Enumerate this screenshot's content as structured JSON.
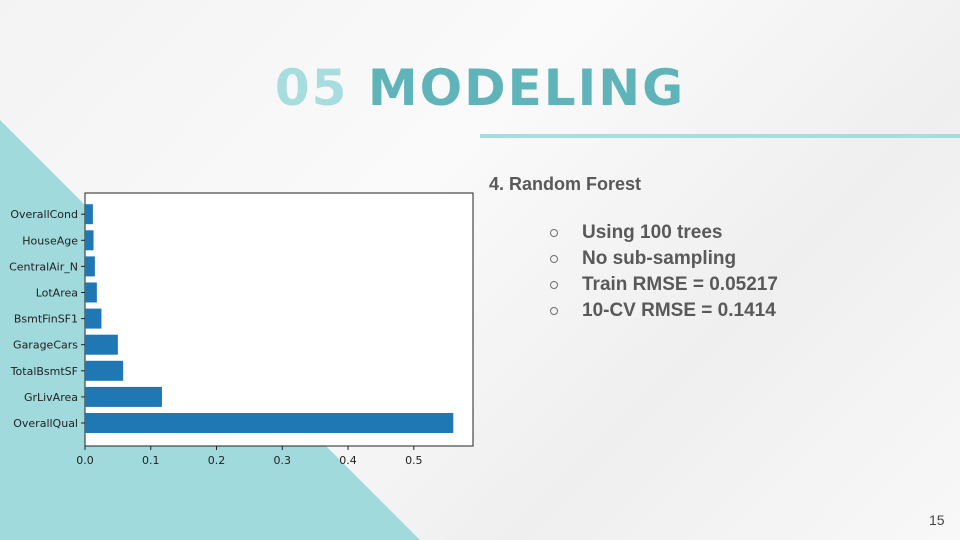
{
  "slide": {
    "title_number": "05",
    "title_word": "MODELING",
    "subheading": "4. Random Forest",
    "bullets": [
      "Using 100 trees",
      "No sub-sampling",
      "Train RMSE = 0.05217",
      "10-CV RMSE = 0.1414"
    ],
    "page_number": "15",
    "colors": {
      "title_number": "#a8dde0",
      "title_word": "#5fb4b9",
      "accent_triangle": "#a0dadd",
      "bar": "#1f77b4"
    }
  },
  "chart_data": {
    "type": "bar",
    "orientation": "horizontal",
    "categories": [
      "OverallQual",
      "GrLivArea",
      "TotalBsmtSF",
      "GarageCars",
      "BsmtFinSF1",
      "LotArea",
      "CentralAir_N",
      "HouseAge",
      "OverallCond"
    ],
    "values": [
      0.56,
      0.117,
      0.058,
      0.05,
      0.025,
      0.018,
      0.015,
      0.013,
      0.012
    ],
    "xticks": [
      "0.0",
      "0.1",
      "0.2",
      "0.3",
      "0.4",
      "0.5"
    ],
    "xlim": [
      0,
      0.59
    ],
    "title": "",
    "xlabel": "",
    "ylabel": "",
    "grid": false,
    "legend": "none"
  }
}
